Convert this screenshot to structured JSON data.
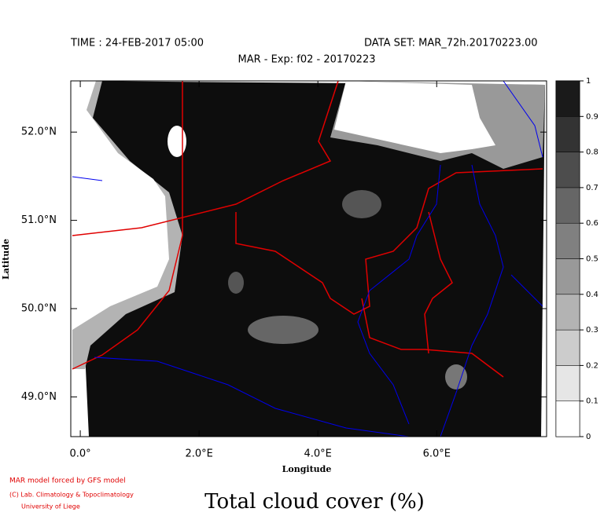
{
  "header": {
    "time": "TIME : 24-FEB-2017 05:00",
    "dataset": "DATA SET: MAR_72h.20170223.00",
    "subtitle": "MAR - Exp: f02 - 20170223"
  },
  "map": {
    "x_label": "Longitude",
    "y_label": "Latitude",
    "xlim": [
      -0.16,
      7.85
    ],
    "ylim": [
      48.55,
      52.58
    ],
    "xticks": [
      {
        "value": 0,
        "label": "0.0°"
      },
      {
        "value": 2,
        "label": "2.0°E"
      },
      {
        "value": 4,
        "label": "4.0°E"
      },
      {
        "value": 6,
        "label": "6.0°E"
      }
    ],
    "yticks": [
      {
        "value": 49,
        "label": "49.0°N"
      },
      {
        "value": 50,
        "label": "50.0°N"
      },
      {
        "value": 51,
        "label": "51.0°N"
      },
      {
        "value": 52,
        "label": "52.0°N"
      }
    ]
  },
  "colorbar": {
    "levels": [
      0,
      0.1,
      0.2,
      0.3,
      0.4,
      0.5,
      0.6,
      0.7,
      0.8,
      0.9,
      1
    ],
    "colors": [
      "#ffffff",
      "#e6e6e6",
      "#cccccc",
      "#b3b3b3",
      "#999999",
      "#808080",
      "#666666",
      "#4d4d4d",
      "#333333",
      "#1a1a1a"
    ]
  },
  "footer": {
    "credit1": "MAR model forced by GFS model",
    "credit2": "(C) Lab. Climatology & Topoclimatology",
    "credit3": "University of Liege",
    "title": "Total cloud cover (%)"
  }
}
